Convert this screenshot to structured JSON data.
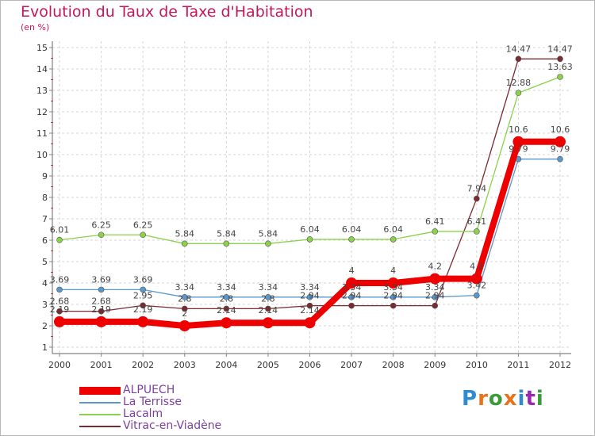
{
  "title": "Evolution du Taux de Taxe d'Habitation",
  "subtitle": "(en %)",
  "logo": {
    "text": "Proxiti",
    "colors": [
      "#2e8bd0",
      "#e8731c",
      "#3a9b3a",
      "#e8731c",
      "#2e8bd0",
      "#9c27b0",
      "#3a9b3a"
    ]
  },
  "chart_data": {
    "type": "line",
    "title": "Evolution du Taux de Taxe d'Habitation",
    "ylabel": "(en %)",
    "xlabel": "",
    "x": [
      "2000",
      "2001",
      "2002",
      "2003",
      "2004",
      "2005",
      "2006",
      "2007",
      "2008",
      "2009",
      "2010",
      "2011",
      "2012"
    ],
    "ylim": [
      1,
      15
    ],
    "yticks": [
      "1",
      "2",
      "3",
      "4",
      "5",
      "6",
      "7",
      "8",
      "9",
      "10",
      "11",
      "12",
      "13",
      "14",
      "15"
    ],
    "grid": true,
    "legend": "bottom-left",
    "series": [
      {
        "name": "ALPUECH",
        "color": "#ee0000",
        "values": [
          2.19,
          2.19,
          2.19,
          2,
          2.14,
          2.14,
          2.14,
          4,
          4,
          4.2,
          4.2,
          10.6,
          10.6
        ],
        "labels": [
          "2.19",
          "2.19",
          "2.19",
          "2",
          "2.14",
          "2.14",
          "2.14",
          "4",
          "4",
          "4.2",
          "4.2",
          "10.6",
          "10.6"
        ]
      },
      {
        "name": "La Terrisse",
        "color": "#5a98cc",
        "values": [
          3.69,
          3.69,
          3.69,
          3.34,
          3.34,
          3.34,
          3.34,
          3.34,
          3.34,
          3.34,
          3.42,
          9.79,
          9.79
        ],
        "labels": [
          "3.69",
          "3.69",
          "3.69",
          "3.34",
          "3.34",
          "3.34",
          "3.34",
          "3.34",
          "3.34",
          "3.34",
          "3.42",
          "9.79",
          "9.79"
        ]
      },
      {
        "name": "Lacalm",
        "color": "#8bd24a",
        "values": [
          6.01,
          6.25,
          6.25,
          5.84,
          5.84,
          5.84,
          6.04,
          6.04,
          6.04,
          6.41,
          6.41,
          12.88,
          13.63
        ],
        "labels": [
          "6.01",
          "6.25",
          "6.25",
          "5.84",
          "5.84",
          "5.84",
          "6.04",
          "6.04",
          "6.04",
          "6.41",
          "6.41",
          "12.88",
          "13.63"
        ]
      },
      {
        "name": "Vitrac-en-Viadène",
        "color": "#7a2a30",
        "values": [
          2.68,
          2.68,
          2.95,
          2.8,
          2.8,
          2.8,
          2.94,
          2.94,
          2.94,
          2.94,
          7.94,
          14.47,
          14.47
        ],
        "labels": [
          "2.68",
          "2.68",
          "2.95",
          "2.8",
          "2.8",
          "2.8",
          "2.94",
          "2.94",
          "2.94",
          "2.94",
          "7.94",
          "14.47",
          "14.47"
        ]
      }
    ]
  }
}
